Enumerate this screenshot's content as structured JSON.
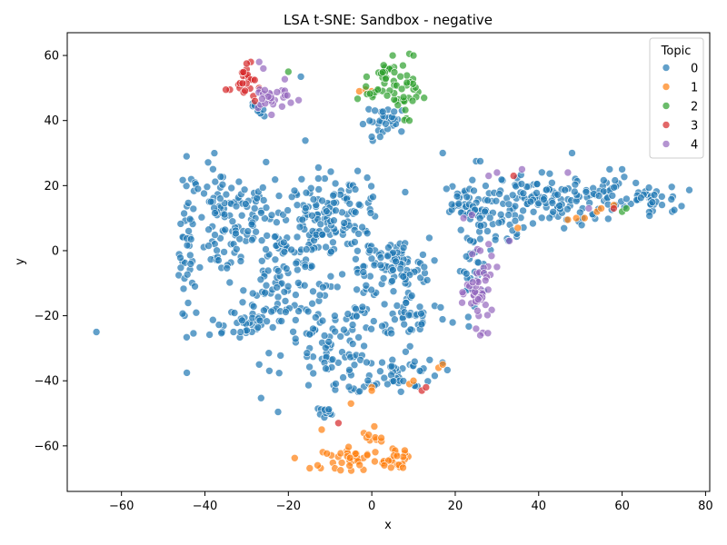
{
  "chart_data": {
    "type": "scatter",
    "title": "LSA t-SNE: Sandbox - negative",
    "xlabel": "x",
    "ylabel": "y",
    "xlim": [
      -73,
      81
    ],
    "ylim": [
      -74,
      67
    ],
    "xticks": [
      -60,
      -40,
      -20,
      0,
      20,
      40,
      60,
      80
    ],
    "yticks": [
      -60,
      -40,
      -20,
      0,
      20,
      40,
      60
    ],
    "grid": false,
    "legend": {
      "title": "Topic",
      "placement": "top-right"
    },
    "series": [
      {
        "name": "0",
        "color": "#1f77b4",
        "clusters": [
          {
            "cx": -44,
            "cy": 0,
            "rx": 2,
            "ry": 26,
            "n": 45
          },
          {
            "cx": -36,
            "cy": 8,
            "rx": 5,
            "ry": 16,
            "n": 70
          },
          {
            "cx": -32,
            "cy": -22,
            "rx": 8,
            "ry": 5,
            "n": 35
          },
          {
            "cx": -28,
            "cy": 12,
            "rx": 6,
            "ry": 12,
            "n": 45
          },
          {
            "cx": -22,
            "cy": -8,
            "rx": 8,
            "ry": 20,
            "n": 90
          },
          {
            "cx": -14,
            "cy": 5,
            "rx": 8,
            "ry": 16,
            "n": 90
          },
          {
            "cx": -10,
            "cy": -30,
            "rx": 10,
            "ry": 14,
            "n": 80
          },
          {
            "cx": -6,
            "cy": 14,
            "rx": 8,
            "ry": 8,
            "n": 60
          },
          {
            "cx": -2,
            "cy": -8,
            "rx": 4,
            "ry": 16,
            "n": 40
          },
          {
            "cx": 6,
            "cy": -5,
            "rx": 7,
            "ry": 8,
            "n": 80
          },
          {
            "cx": 10,
            "cy": -20,
            "rx": 8,
            "ry": 6,
            "n": 40
          },
          {
            "cx": 5,
            "cy": -37,
            "rx": 10,
            "ry": 6,
            "n": 55
          },
          {
            "cx": -12,
            "cy": -50,
            "rx": 3,
            "ry": 2,
            "n": 12
          },
          {
            "cx": 22,
            "cy": 14,
            "rx": 6,
            "ry": 6,
            "n": 45
          },
          {
            "cx": 30,
            "cy": 10,
            "rx": 6,
            "ry": 8,
            "n": 45
          },
          {
            "cx": 38,
            "cy": 17,
            "rx": 6,
            "ry": 6,
            "n": 45
          },
          {
            "cx": 46,
            "cy": 14,
            "rx": 6,
            "ry": 8,
            "n": 45
          },
          {
            "cx": 55,
            "cy": 17,
            "rx": 6,
            "ry": 5,
            "n": 40
          },
          {
            "cx": 66,
            "cy": 16,
            "rx": 7,
            "ry": 4,
            "n": 35
          },
          {
            "cx": 24,
            "cy": -6,
            "rx": 3,
            "ry": 10,
            "n": 30
          },
          {
            "cx": 4,
            "cy": 40,
            "rx": 5,
            "ry": 4,
            "n": 30
          },
          {
            "cx": -27,
            "cy": 43,
            "rx": 2,
            "ry": 2,
            "n": 10
          }
        ],
        "points": [
          {
            "x": -66,
            "y": -25
          },
          {
            "x": 72,
            "y": 12
          },
          {
            "x": 72.5,
            "y": 12.5
          },
          {
            "x": 48,
            "y": 30
          },
          {
            "x": 17,
            "y": 30
          },
          {
            "x": 25,
            "y": 27.5
          },
          {
            "x": 26,
            "y": 27.5
          },
          {
            "x": 8,
            "y": 18
          },
          {
            "x": -17,
            "y": 53.5
          },
          {
            "x": 57,
            "y": 25
          },
          {
            "x": 60,
            "y": 25
          },
          {
            "x": -27,
            "y": -35
          },
          {
            "x": 0,
            "y": 35
          },
          {
            "x": 2,
            "y": 35
          }
        ]
      },
      {
        "name": "1",
        "color": "#ff7f0e",
        "clusters": [
          {
            "cx": -4,
            "cy": -64,
            "rx": 7,
            "ry": 3,
            "n": 40
          },
          {
            "cx": 6,
            "cy": -64,
            "rx": 3,
            "ry": 3,
            "n": 18
          },
          {
            "cx": 1,
            "cy": -58,
            "rx": 3,
            "ry": 3,
            "n": 10
          }
        ],
        "points": [
          {
            "x": -3,
            "y": 49
          },
          {
            "x": -1.5,
            "y": 49.5
          },
          {
            "x": 0,
            "y": 49
          },
          {
            "x": -12,
            "y": -55
          },
          {
            "x": -5,
            "y": -47
          },
          {
            "x": 0,
            "y": -42
          },
          {
            "x": 0,
            "y": -43
          },
          {
            "x": 9,
            "y": -41
          },
          {
            "x": 10,
            "y": -40
          },
          {
            "x": 16,
            "y": -36
          },
          {
            "x": 17,
            "y": -35
          },
          {
            "x": 35,
            "y": 7
          },
          {
            "x": 47,
            "y": 9.5
          },
          {
            "x": 49,
            "y": 10
          },
          {
            "x": 51,
            "y": 10
          },
          {
            "x": 54,
            "y": 12
          },
          {
            "x": 55,
            "y": 13
          },
          {
            "x": 58,
            "y": 14
          },
          {
            "x": -13,
            "y": -66
          },
          {
            "x": 3,
            "y": -66
          }
        ]
      },
      {
        "name": "2",
        "color": "#2ca02c",
        "clusters": [
          {
            "cx": 4,
            "cy": 54,
            "rx": 4,
            "ry": 4,
            "n": 24
          },
          {
            "cx": 8,
            "cy": 48,
            "rx": 3,
            "ry": 6,
            "n": 24
          },
          {
            "cx": 1,
            "cy": 48,
            "rx": 4,
            "ry": 2,
            "n": 14
          }
        ],
        "points": [
          {
            "x": -20,
            "y": 55
          },
          {
            "x": 9,
            "y": 60.5
          },
          {
            "x": 10,
            "y": 60
          },
          {
            "x": 5,
            "y": 60
          },
          {
            "x": 9,
            "y": 40
          },
          {
            "x": 60,
            "y": 12
          },
          {
            "x": 61,
            "y": 13
          }
        ]
      },
      {
        "name": "3",
        "color": "#d62728",
        "clusters": [
          {
            "cx": -30,
            "cy": 52,
            "rx": 2,
            "ry": 5,
            "n": 22
          }
        ],
        "points": [
          {
            "x": -34,
            "y": 49.5
          },
          {
            "x": -35,
            "y": 49.5
          },
          {
            "x": -29,
            "y": 58
          },
          {
            "x": -30,
            "y": 57.5
          },
          {
            "x": -28,
            "y": 46
          },
          {
            "x": -8,
            "y": -53
          },
          {
            "x": 12,
            "y": -43
          },
          {
            "x": 13,
            "y": -42
          },
          {
            "x": 34,
            "y": 23
          },
          {
            "x": 58,
            "y": 13
          }
        ]
      },
      {
        "name": "4",
        "color": "#9467bd",
        "clusters": [
          {
            "cx": -24,
            "cy": 47,
            "rx": 5,
            "ry": 4,
            "n": 28
          },
          {
            "cx": 26,
            "cy": -13,
            "rx": 3,
            "ry": 9,
            "n": 45
          }
        ],
        "points": [
          {
            "x": -27,
            "y": 58
          },
          {
            "x": -26,
            "y": 56
          },
          {
            "x": 28,
            "y": 23
          },
          {
            "x": 30,
            "y": 24
          },
          {
            "x": 36,
            "y": 25
          },
          {
            "x": 47,
            "y": 24
          },
          {
            "x": 52,
            "y": 13
          },
          {
            "x": 22,
            "y": 10
          },
          {
            "x": 24,
            "y": 11
          },
          {
            "x": 28,
            "y": 2
          },
          {
            "x": 33,
            "y": 3
          },
          {
            "x": 30,
            "y": -5
          },
          {
            "x": 26,
            "y": 0
          },
          {
            "x": 26,
            "y": -26
          },
          {
            "x": 25,
            "y": -24
          }
        ]
      }
    ]
  }
}
